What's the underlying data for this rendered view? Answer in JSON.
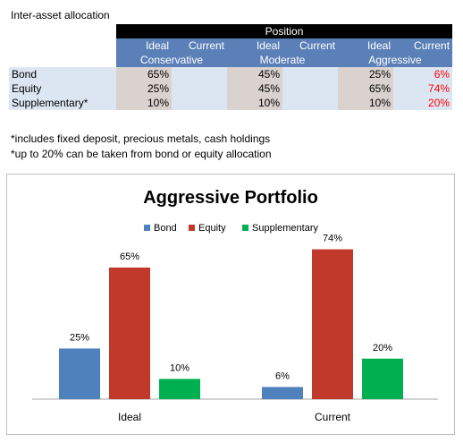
{
  "table": {
    "title": "Inter-asset allocation",
    "position_label": "Position",
    "col_ideal": "Ideal",
    "col_current": "Current",
    "groups": [
      "Conservative",
      "Moderate",
      "Aggressive"
    ],
    "rows": [
      {
        "label": "Bond",
        "values": [
          "65%",
          "",
          "45%",
          "",
          "25%",
          "6%"
        ]
      },
      {
        "label": "Equity",
        "values": [
          "25%",
          "",
          "45%",
          "",
          "65%",
          "74%"
        ]
      },
      {
        "label": "Supplementary*",
        "values": [
          "10%",
          "",
          "10%",
          "",
          "10%",
          "20%"
        ]
      }
    ]
  },
  "notes": [
    "*includes fixed deposit, precious metals, cash holdings",
    "*up to 20% can be taken from bond or equity allocation"
  ],
  "colors": {
    "bond": "#4f81bd",
    "equity": "#c0392b",
    "supplementary": "#00b050"
  },
  "chart_data": {
    "type": "bar",
    "title": "Aggressive Portfolio",
    "categories": [
      "Ideal",
      "Current"
    ],
    "series": [
      {
        "name": "Bond",
        "values": [
          25,
          6
        ]
      },
      {
        "name": "Equity",
        "values": [
          65,
          74
        ]
      },
      {
        "name": "Supplementary",
        "values": [
          10,
          20
        ]
      }
    ],
    "data_labels": [
      [
        "25%",
        "6%"
      ],
      [
        "65%",
        "74%"
      ],
      [
        "10%",
        "20%"
      ]
    ],
    "ylim": [
      0,
      80
    ],
    "grid": false,
    "legend": "top"
  }
}
